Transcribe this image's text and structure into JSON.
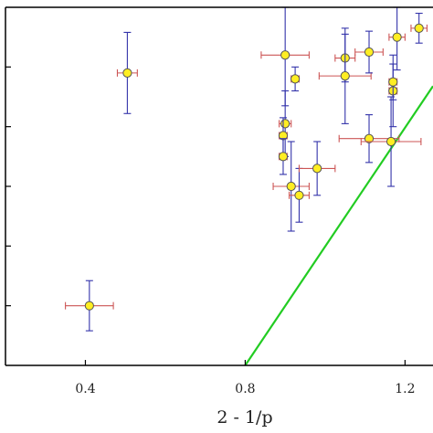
{
  "chart_data": {
    "type": "scatter",
    "title": "",
    "xlabel": "2 - 1/p",
    "ylabel": "",
    "xlim": [
      0.2,
      1.27
    ],
    "ylim": [
      0,
      6
    ],
    "x_ticks": [
      0.4,
      0.8,
      1.2
    ],
    "x_tick_labels": [
      "0.4",
      "0.8",
      "1.2"
    ],
    "y_ticks": [
      1,
      2,
      3,
      4,
      5
    ],
    "grid": false,
    "legend": "none",
    "colors": {
      "marker_fill": "#ffee22",
      "marker_edge": "#555555",
      "x_error": "#cc5555",
      "y_error": "#3333aa",
      "fit_line": "#22cc22",
      "axes": "#000000"
    },
    "points": [
      {
        "x": 0.41,
        "y": 1.0,
        "xerr": 0.06,
        "yerr": 0.42
      },
      {
        "x": 0.505,
        "y": 4.9,
        "xerr": 0.025,
        "yerr": 0.68
      },
      {
        "x": 0.9,
        "y": 5.2,
        "xerr": 0.06,
        "yerr": 0.85
      },
      {
        "x": 0.925,
        "y": 4.8,
        "xerr": 0.01,
        "yerr": 0.2
      },
      {
        "x": 0.9,
        "y": 4.05,
        "xerr": 0.015,
        "yerr": 0.55
      },
      {
        "x": 0.895,
        "y": 3.85,
        "xerr": 0.01,
        "yerr": 0.3
      },
      {
        "x": 0.895,
        "y": 3.5,
        "xerr": 0.01,
        "yerr": 0.3
      },
      {
        "x": 0.915,
        "y": 3.0,
        "xerr": 0.045,
        "yerr": 0.75
      },
      {
        "x": 0.935,
        "y": 2.85,
        "xerr": 0.025,
        "yerr": 0.45
      },
      {
        "x": 0.98,
        "y": 3.3,
        "xerr": 0.045,
        "yerr": 0.45
      },
      {
        "x": 1.05,
        "y": 5.15,
        "xerr": 0.025,
        "yerr": 0.4
      },
      {
        "x": 1.05,
        "y": 4.85,
        "xerr": 0.065,
        "yerr": 0.8
      },
      {
        "x": 1.11,
        "y": 5.25,
        "xerr": 0.035,
        "yerr": 0.35
      },
      {
        "x": 1.11,
        "y": 3.8,
        "xerr": 0.075,
        "yerr": 0.4
      },
      {
        "x": 1.165,
        "y": 3.75,
        "xerr": 0.075,
        "yerr": 0.75
      },
      {
        "x": 1.17,
        "y": 4.6,
        "xerr": 0.01,
        "yerr": 0.6
      },
      {
        "x": 1.17,
        "y": 4.75,
        "xerr": 0.01,
        "yerr": 0.3
      },
      {
        "x": 1.18,
        "y": 5.5,
        "xerr": 0.02,
        "yerr": 0.55
      },
      {
        "x": 1.235,
        "y": 5.65,
        "xerr": 0.02,
        "yerr": 0.25
      }
    ],
    "fit_line": {
      "x": [
        0.8,
        1.27
      ],
      "y": [
        0,
        4.68
      ]
    }
  }
}
